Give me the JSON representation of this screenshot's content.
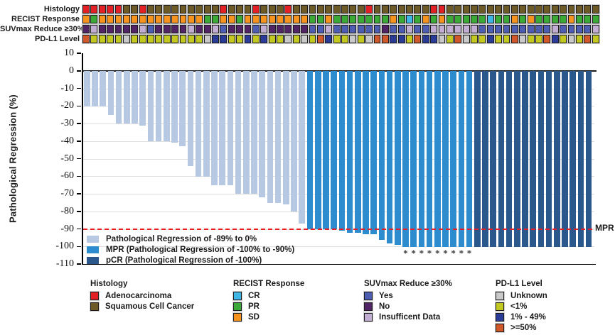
{
  "figure": {
    "track_labels": [
      "Histology",
      "RECIST Response",
      "SUVmax Reduce ≥30%",
      "PD-L1 Level"
    ],
    "chart_legend": [
      {
        "label": "Pathological Regression of -89% to 0%",
        "color": "#b7c8e2"
      },
      {
        "label": "MPR (Pathological Regression of -100% to -90%)",
        "color": "#2d8ccd"
      },
      {
        "label": "pCR (Pathological Regression of -100%)",
        "color": "#2a578c"
      }
    ],
    "legend_groups": [
      {
        "title": "Histology",
        "items": [
          {
            "label": "Adenocarcinoma",
            "color": "#e32026"
          },
          {
            "label": "Squamous Cell Cancer",
            "color": "#6e5a26"
          }
        ]
      },
      {
        "title": "RECIST Response",
        "items": [
          {
            "label": "CR",
            "color": "#3fb5e5"
          },
          {
            "label": "PR",
            "color": "#3aa935"
          },
          {
            "label": "SD",
            "color": "#f6921e"
          }
        ]
      },
      {
        "title": "SUVmax Reduce ≥30%",
        "items": [
          {
            "label": "Yes",
            "color": "#4c5db2"
          },
          {
            "label": "No",
            "color": "#512466"
          },
          {
            "label": "Insufficent Data",
            "color": "#c2aed3"
          }
        ]
      },
      {
        "title": "PD-L1 Level",
        "items": [
          {
            "label": "Unknown",
            "color": "#c9c9c9"
          },
          {
            "label": "<1%",
            "color": "#c2c81f"
          },
          {
            "label": "1% - 49%",
            "color": "#2b3b98"
          },
          {
            "label": ">=50%",
            "color": "#d1582a"
          }
        ]
      }
    ]
  },
  "chart_data": {
    "type": "bar",
    "title": "",
    "xlabel": "",
    "ylabel": "Pathological Regression (%)",
    "ylim": [
      -110,
      10
    ],
    "yticks": [
      10,
      0,
      -10,
      -20,
      -30,
      -40,
      -50,
      -60,
      -70,
      -80,
      -90,
      -100,
      -110
    ],
    "grid": "horizontal",
    "n_patients": 64,
    "values": [
      -20,
      -20,
      -20,
      -25,
      -30,
      -30,
      -30,
      -31,
      -40,
      -40,
      -40,
      -41,
      -43,
      -54,
      -60,
      -60,
      -65,
      -65,
      -65,
      -70,
      -70,
      -70,
      -72,
      -75,
      -75,
      -76,
      -80,
      -87,
      -90,
      -90,
      -90,
      -90,
      -91,
      -92,
      -92,
      -93,
      -93,
      -96,
      -98,
      -99,
      -100,
      -100,
      -100,
      -100,
      -100,
      -100,
      -100,
      -100,
      -100,
      -100,
      -100,
      -100,
      -100,
      -100,
      -100,
      -100,
      -100,
      -100,
      -100,
      -100,
      -100,
      -100,
      -100,
      -100
    ],
    "bar_classes": [
      {
        "name": "standard",
        "label": "Pathological Regression of -89% to 0%",
        "color": "#b7c8e2",
        "first_col": 1,
        "last_col": 28
      },
      {
        "name": "mpr",
        "label": "MPR (Pathological Regression of -100% to -90%)",
        "color": "#2d8ccd",
        "first_col": 29,
        "last_col": 49
      },
      {
        "name": "pcr",
        "label": "pCR (Pathological Regression of -100%)",
        "color": "#2a578c",
        "first_col": 50,
        "last_col": 64
      }
    ],
    "asterisk_columns": [
      41,
      42,
      43,
      44,
      45,
      46,
      47,
      48,
      49
    ],
    "reference_line": {
      "y": -90,
      "label": "MPR",
      "style": "dashed",
      "color": "#ec1c24"
    },
    "annotations": {
      "histology": "AAAAASSASSSSSSSSSASSSASSSASSSSSSSSSASSSSSSSAASSSSSSSSSSSSSSSSSSS",
      "recist": "DPDDDDDDDDDDDDDPPDDPDDDDDDDDPPDPPPPPPPDPCPDPDPPPPPCPPDPDPPPPDPPP",
      "suvmax": "NINNNNNIYNNNNINNIYNNNYINNNNNYYIYYYYYYNYYIYYIIIIIIYYYYYYYYYIYYYYI",
      "pdl1": "HLLLLULLLLLLLLLUMMLLMLMLLULULHMLLULUHHMMLHMMULHULLMLLHULLHMLULHL",
      "code_meanings": {
        "histology": {
          "A": "Adenocarcinoma",
          "S": "Squamous Cell Cancer"
        },
        "recist": {
          "C": "CR",
          "P": "PR",
          "D": "SD"
        },
        "suvmax": {
          "Y": "Yes",
          "N": "No",
          "I": "Insufficent Data"
        },
        "pdl1": {
          "U": "Unknown",
          "L": "<1%",
          "M": "1% - 49%",
          "H": ">=50%"
        }
      },
      "code_colors": {
        "histology": {
          "A": "#e32026",
          "S": "#6e5a26"
        },
        "recist": {
          "C": "#3fb5e5",
          "P": "#3aa935",
          "D": "#f6921e"
        },
        "suvmax": {
          "Y": "#4c5db2",
          "N": "#512466",
          "I": "#c2aed3"
        },
        "pdl1": {
          "U": "#c9c9c9",
          "L": "#c2c81f",
          "M": "#2b3b98",
          "H": "#d1582a"
        }
      }
    }
  }
}
